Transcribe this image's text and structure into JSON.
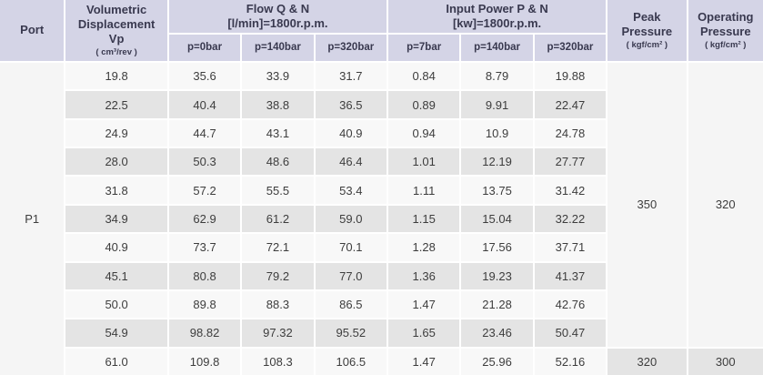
{
  "table": {
    "header": {
      "port": "Port",
      "volumetric": {
        "title": "Volumetric\nDisplacement\nVp",
        "unit": "( cm³/rev )"
      },
      "flow": {
        "title": "Flow  Q & N\n[l/min]=1800r.p.m.",
        "cols": [
          "p=0bar",
          "p=140bar",
          "p=320bar"
        ]
      },
      "power": {
        "title": "Input Power P & N\n[kw]=1800r.p.m.",
        "cols": [
          "p=7bar",
          "p=140bar",
          "p=320bar"
        ]
      },
      "peak": {
        "title": "Peak\nPressure",
        "unit": "( kgf/cm² )"
      },
      "operating": {
        "title": "Operating\nPressure",
        "unit": "( kgf/cm² )"
      }
    },
    "port_label": "P1",
    "rows": [
      {
        "vp": "19.8",
        "flow": [
          "35.6",
          "33.9",
          "31.7"
        ],
        "power": [
          "0.84",
          "8.79",
          "19.88"
        ]
      },
      {
        "vp": "22.5",
        "flow": [
          "40.4",
          "38.8",
          "36.5"
        ],
        "power": [
          "0.89",
          "9.91",
          "22.47"
        ]
      },
      {
        "vp": "24.9",
        "flow": [
          "44.7",
          "43.1",
          "40.9"
        ],
        "power": [
          "0.94",
          "10.9",
          "24.78"
        ]
      },
      {
        "vp": "28.0",
        "flow": [
          "50.3",
          "48.6",
          "46.4"
        ],
        "power": [
          "1.01",
          "12.19",
          "27.77"
        ]
      },
      {
        "vp": "31.8",
        "flow": [
          "57.2",
          "55.5",
          "53.4"
        ],
        "power": [
          "1.11",
          "13.75",
          "31.42"
        ]
      },
      {
        "vp": "34.9",
        "flow": [
          "62.9",
          "61.2",
          "59.0"
        ],
        "power": [
          "1.15",
          "15.04",
          "32.22"
        ]
      },
      {
        "vp": "40.9",
        "flow": [
          "73.7",
          "72.1",
          "70.1"
        ],
        "power": [
          "1.28",
          "17.56",
          "37.71"
        ]
      },
      {
        "vp": "45.1",
        "flow": [
          "80.8",
          "79.2",
          "77.0"
        ],
        "power": [
          "1.36",
          "19.23",
          "41.37"
        ]
      },
      {
        "vp": "50.0",
        "flow": [
          "89.8",
          "88.3",
          "86.5"
        ],
        "power": [
          "1.47",
          "21.28",
          "42.76"
        ]
      },
      {
        "vp": "54.9",
        "flow": [
          "98.82",
          "97.32",
          "95.52"
        ],
        "power": [
          "1.65",
          "23.46",
          "50.47"
        ]
      },
      {
        "vp": "61.0",
        "flow": [
          "109.8",
          "108.3",
          "106.5"
        ],
        "power": [
          "1.47",
          "25.96",
          "52.16"
        ]
      }
    ],
    "peak_pressure_main": "350",
    "operating_pressure_main": "320",
    "peak_pressure_last": "320",
    "operating_pressure_last": "300"
  },
  "colors": {
    "header_bg": "#d4d4e6",
    "header_text": "#39394f",
    "cell_text": "#3d3d3d",
    "row_light": "#f8f8f8",
    "row_dark": "#e4e4e4",
    "side_bg": "#f5f5f5",
    "grid_line": "#ffffff"
  }
}
